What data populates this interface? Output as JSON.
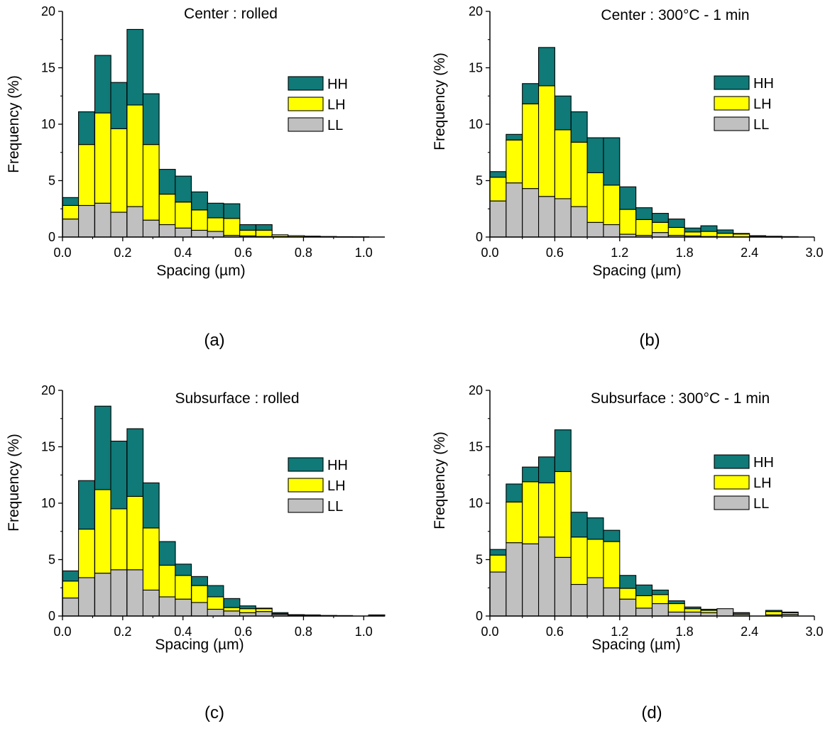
{
  "colors": {
    "HH": "#0f7a78",
    "LH": "#ffff00",
    "LL": "#c0c0c0",
    "outline": "#000000"
  },
  "chart_data": [
    {
      "type": "bar",
      "stacked": true,
      "title": "Center : rolled",
      "panel_label": "(a)",
      "xlabel": "Spacing (µm)",
      "ylabel": "Frequency  (%)",
      "xlim": [
        0.0,
        1.07
      ],
      "ylim": [
        0,
        20
      ],
      "xticks": [
        "0.0",
        "0.2",
        "0.4",
        "0.6",
        "0.8",
        "1.0"
      ],
      "yticks": [
        "0",
        "5",
        "10",
        "15",
        "20"
      ],
      "bin_width": 0.0535,
      "x": [
        0.027,
        0.08,
        0.134,
        0.187,
        0.241,
        0.294,
        0.348,
        0.401,
        0.455,
        0.508,
        0.562,
        0.615,
        0.669,
        0.722,
        0.776,
        0.829,
        0.883,
        0.936,
        0.99,
        1.043
      ],
      "legend": [
        "HH",
        "LH",
        "LL"
      ],
      "legend_position": "upper right",
      "series": [
        {
          "name": "LL",
          "values": [
            1.6,
            2.8,
            3.0,
            2.2,
            2.7,
            1.5,
            1.1,
            0.8,
            0.6,
            0.5,
            0.15,
            0.1,
            0.05,
            0.05,
            0.02,
            0.02,
            0.02,
            0.01,
            0.01,
            0.0
          ]
        },
        {
          "name": "LH",
          "values": [
            1.2,
            5.4,
            8.0,
            7.4,
            9.0,
            6.7,
            2.7,
            2.3,
            1.8,
            1.2,
            1.5,
            0.5,
            0.55,
            0.15,
            0.1,
            0.06,
            0.03,
            0.02,
            0.01,
            0.0
          ]
        },
        {
          "name": "HH",
          "values": [
            0.7,
            2.9,
            5.1,
            4.1,
            6.7,
            4.5,
            2.2,
            2.3,
            1.6,
            1.3,
            1.3,
            0.5,
            0.5,
            0.0,
            0.0,
            0.0,
            0.0,
            0.0,
            0.0,
            0.0
          ]
        }
      ]
    },
    {
      "type": "bar",
      "stacked": true,
      "title": "Center : 300°C - 1 min",
      "panel_label": "(b)",
      "xlabel": "Spacing (µm)",
      "ylabel": "Frequency  (%)",
      "xlim": [
        0.0,
        3.0
      ],
      "ylim": [
        0,
        20
      ],
      "xticks": [
        "0.0",
        "0.6",
        "1.2",
        "1.8",
        "2.4",
        "3.0"
      ],
      "yticks": [
        "0",
        "5",
        "10",
        "15",
        "20"
      ],
      "bin_width": 0.15,
      "x": [
        0.075,
        0.225,
        0.375,
        0.525,
        0.675,
        0.825,
        0.975,
        1.125,
        1.275,
        1.425,
        1.575,
        1.725,
        1.875,
        2.025,
        2.175,
        2.325,
        2.475,
        2.625,
        2.775,
        2.925
      ],
      "legend": [
        "HH",
        "LH",
        "LL"
      ],
      "legend_position": "upper right",
      "series": [
        {
          "name": "LL",
          "values": [
            3.2,
            4.8,
            4.3,
            3.6,
            3.4,
            2.7,
            1.3,
            1.1,
            0.25,
            0.15,
            0.4,
            0.15,
            0.1,
            0.05,
            0.03,
            0.02,
            0.02,
            0.01,
            0.01,
            0.0
          ]
        },
        {
          "name": "LH",
          "values": [
            2.1,
            3.8,
            7.5,
            9.8,
            6.1,
            5.7,
            4.4,
            3.5,
            2.2,
            1.4,
            0.9,
            0.7,
            0.35,
            0.45,
            0.3,
            0.25,
            0.05,
            0.03,
            0.02,
            0.0
          ]
        },
        {
          "name": "HH",
          "values": [
            0.5,
            0.5,
            1.8,
            3.4,
            3.0,
            2.7,
            3.1,
            4.2,
            2.0,
            1.05,
            0.8,
            0.75,
            0.35,
            0.5,
            0.3,
            0.05,
            0.05,
            0.03,
            0.01,
            0.0
          ]
        }
      ]
    },
    {
      "type": "bar",
      "stacked": true,
      "title": "Subsurface : rolled",
      "panel_label": "(c)",
      "xlabel": "Spacing (µm)",
      "ylabel": "Frequency  (%)",
      "xlim": [
        0.0,
        1.07
      ],
      "ylim": [
        0,
        20
      ],
      "xticks": [
        "0.0",
        "0.2",
        "0.4",
        "0.6",
        "0.8",
        "1.0"
      ],
      "yticks": [
        "0",
        "5",
        "10",
        "15",
        "20"
      ],
      "bin_width": 0.0535,
      "x": [
        0.027,
        0.08,
        0.134,
        0.187,
        0.241,
        0.294,
        0.348,
        0.401,
        0.455,
        0.508,
        0.562,
        0.615,
        0.669,
        0.722,
        0.776,
        0.829,
        0.883,
        0.936,
        0.99,
        1.043
      ],
      "legend": [
        "HH",
        "LH",
        "LL"
      ],
      "legend_position": "upper right",
      "series": [
        {
          "name": "LL",
          "values": [
            1.6,
            3.4,
            3.8,
            4.1,
            4.1,
            2.3,
            1.7,
            1.5,
            1.2,
            0.6,
            0.45,
            0.3,
            0.4,
            0.15,
            0.05,
            0.05,
            0.02,
            0.02,
            0.0,
            0.05
          ]
        },
        {
          "name": "LH",
          "values": [
            1.5,
            4.3,
            7.4,
            5.4,
            6.5,
            5.5,
            2.8,
            2.1,
            1.5,
            1.1,
            0.3,
            0.35,
            0.25,
            0.05,
            0.05,
            0.02,
            0.02,
            0.01,
            0.0,
            0.02
          ]
        },
        {
          "name": "HH",
          "values": [
            0.9,
            4.3,
            7.4,
            6.0,
            6.0,
            4.0,
            2.1,
            1.0,
            0.8,
            1.0,
            0.8,
            0.25,
            0.05,
            0.1,
            0.02,
            0.03,
            0.01,
            0.01,
            0.0,
            0.03
          ]
        }
      ]
    },
    {
      "type": "bar",
      "stacked": true,
      "title": "Subsurface : 300°C - 1 min",
      "panel_label": "(d)",
      "xlabel": "Spacing (µm)",
      "ylabel": "Frequency  (%)",
      "xlim": [
        0.0,
        3.0
      ],
      "ylim": [
        0,
        20
      ],
      "xticks": [
        "0.0",
        "0.6",
        "1.2",
        "1.8",
        "2.4",
        "3.0"
      ],
      "yticks": [
        "0",
        "5",
        "10",
        "15",
        "20"
      ],
      "bin_width": 0.15,
      "x": [
        0.075,
        0.225,
        0.375,
        0.525,
        0.675,
        0.825,
        0.975,
        1.125,
        1.275,
        1.425,
        1.575,
        1.725,
        1.875,
        2.025,
        2.175,
        2.325,
        2.475,
        2.625,
        2.775,
        2.925
      ],
      "legend": [
        "HH",
        "LH",
        "LL"
      ],
      "legend_position": "upper right",
      "series": [
        {
          "name": "LL",
          "values": [
            3.9,
            6.5,
            6.4,
            7.0,
            5.2,
            2.8,
            3.4,
            2.5,
            1.5,
            0.7,
            1.1,
            0.35,
            0.35,
            0.3,
            0.65,
            0.15,
            0.0,
            0.1,
            0.15,
            0.0
          ]
        },
        {
          "name": "LH",
          "values": [
            1.5,
            3.6,
            5.5,
            4.8,
            7.6,
            4.2,
            3.4,
            4.1,
            0.95,
            1.1,
            0.8,
            0.75,
            0.3,
            0.2,
            0.0,
            0.1,
            0.0,
            0.3,
            0.15,
            0.0
          ]
        },
        {
          "name": "HH",
          "values": [
            0.5,
            1.6,
            1.3,
            2.3,
            3.7,
            2.2,
            1.9,
            1.0,
            1.15,
            0.95,
            0.4,
            0.25,
            0.15,
            0.1,
            0.0,
            0.05,
            0.0,
            0.1,
            0.05,
            0.0
          ]
        }
      ]
    }
  ]
}
